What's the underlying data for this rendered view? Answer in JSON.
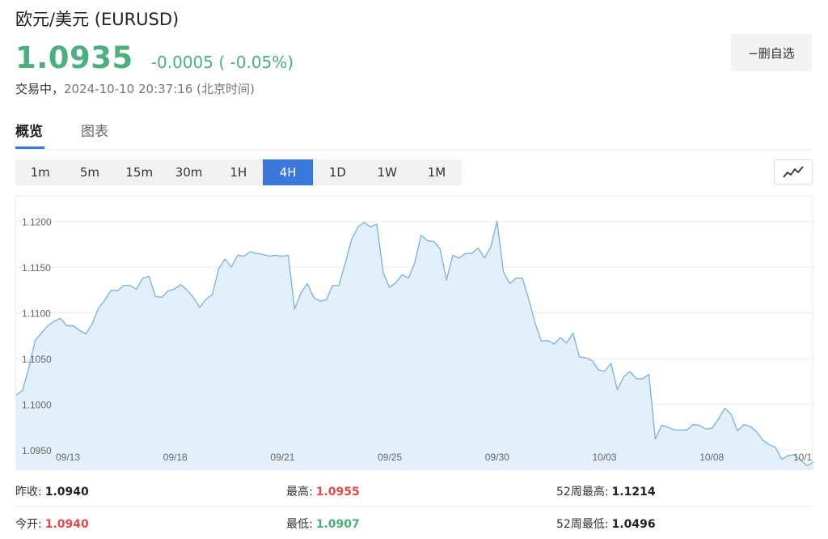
{
  "header": {
    "title": "欧元/美元 (EURUSD)",
    "price": "1.0935",
    "change": "-0.0005 ( -0.05%)",
    "status_label": "交易中，",
    "timestamp": "2024-10-10 20:37:16 (北京时间)",
    "favorite_button": "−删自选"
  },
  "tabs": [
    {
      "label": "概览",
      "active": true
    },
    {
      "label": "图表",
      "active": false
    }
  ],
  "intervals": [
    "1m",
    "5m",
    "15m",
    "30m",
    "1H",
    "4H",
    "1D",
    "1W",
    "1M"
  ],
  "active_interval": "4H",
  "colors": {
    "up_green": "#4caf7d",
    "down_red": "#e04b4b",
    "accent_blue": "#3a78db",
    "line": "#7fb5e6",
    "fill": "#e3effb"
  },
  "chart_data": {
    "type": "area",
    "x_ticks": [
      "09/13",
      "09/18",
      "09/21",
      "09/25",
      "09/30",
      "10/03",
      "10/08",
      "10/1"
    ],
    "y_ticks": [
      "1.1200",
      "1.1150",
      "1.1100",
      "1.1050",
      "1.1000",
      "1.0950"
    ],
    "ylim": [
      1.0928,
      1.1228
    ],
    "grid": true,
    "values": [
      1.101,
      1.1015,
      1.104,
      1.107,
      1.1078,
      1.1086,
      1.1091,
      1.1094,
      1.1086,
      1.1086,
      1.1081,
      1.1077,
      1.1088,
      1.1105,
      1.1114,
      1.1125,
      1.1124,
      1.113,
      1.113,
      1.1126,
      1.1138,
      1.114,
      1.1118,
      1.1117,
      1.1124,
      1.1126,
      1.1131,
      1.1125,
      1.1117,
      1.1106,
      1.1115,
      1.112,
      1.1148,
      1.1159,
      1.115,
      1.1163,
      1.1162,
      1.1167,
      1.1165,
      1.1164,
      1.1162,
      1.1163,
      1.1162,
      1.1163,
      1.1104,
      1.1122,
      1.1132,
      1.1117,
      1.1113,
      1.1114,
      1.113,
      1.113,
      1.1154,
      1.118,
      1.1194,
      1.1199,
      1.1194,
      1.1197,
      1.1144,
      1.1128,
      1.1133,
      1.1142,
      1.1138,
      1.1155,
      1.1185,
      1.1179,
      1.1178,
      1.117,
      1.1136,
      1.1163,
      1.116,
      1.1165,
      1.1165,
      1.1171,
      1.116,
      1.1172,
      1.12,
      1.1145,
      1.1132,
      1.1138,
      1.1138,
      1.1115,
      1.1089,
      1.1069,
      1.107,
      1.1066,
      1.1073,
      1.1067,
      1.1078,
      1.1052,
      1.1051,
      1.1048,
      1.1038,
      1.1036,
      1.1045,
      1.1016,
      1.103,
      1.1036,
      1.1028,
      1.1028,
      1.1033,
      1.0962,
      1.0977,
      1.0975,
      1.0972,
      1.0972,
      1.0972,
      1.0978,
      1.0977,
      1.0973,
      1.0974,
      1.0984,
      1.0996,
      1.0989,
      1.0971,
      1.0978,
      1.0976,
      1.097,
      1.0961,
      1.0956,
      1.0953,
      1.094,
      1.0944,
      1.0945,
      1.0939,
      1.0933,
      1.0937
    ]
  },
  "stats": {
    "prev_close_label": "昨收:",
    "prev_close": "1.0940",
    "high_label": "最高:",
    "high": "1.0955",
    "w52_high_label": "52周最高:",
    "w52_high": "1.1214",
    "open_label": "今开:",
    "open": "1.0940",
    "low_label": "最低:",
    "low": "1.0907",
    "w52_low_label": "52周最低:",
    "w52_low": "1.0496"
  }
}
